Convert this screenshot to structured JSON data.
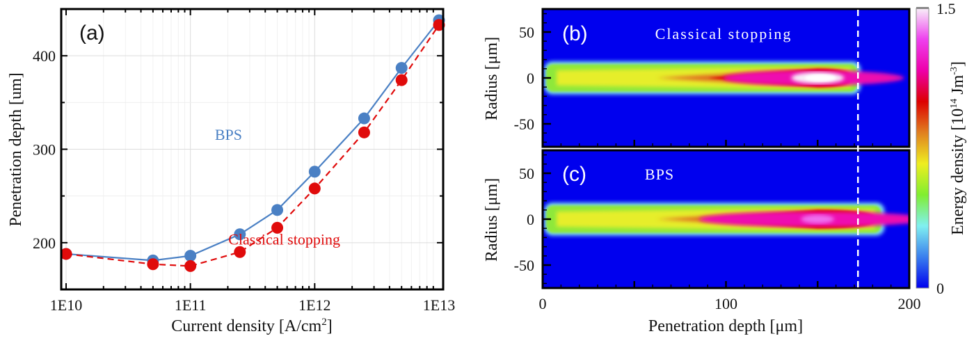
{
  "chart_data": [
    {
      "type": "line",
      "panel_label": "(a)",
      "xlabel": "Current density [A/cm",
      "xlabel_sup": "2",
      "xlabel_end": "]",
      "ylabel": "Penetration depth [um]",
      "xscale": "log",
      "xlim": [
        10000000000.0,
        10000000000000.0
      ],
      "ylim": [
        150,
        450
      ],
      "x_tick_values": [
        10000000000.0,
        100000000000.0,
        1000000000000.0,
        10000000000000.0
      ],
      "x_tick_labels": [
        "1E10",
        "1E11",
        "1E12",
        "1E13"
      ],
      "y_tick_values": [
        200,
        300,
        400
      ],
      "y_tick_labels": [
        "200",
        "300",
        "400"
      ],
      "grid": true,
      "x": [
        10000000000.0,
        50000000000.0,
        100000000000.0,
        250000000000.0,
        500000000000.0,
        1000000000000.0,
        2500000000000.0,
        5000000000000.0,
        10000000000000.0
      ],
      "series": [
        {
          "name": "BPS",
          "color": "#4a80c4",
          "line_style": "solid",
          "values": [
            188,
            181,
            186,
            209,
            235,
            276,
            333,
            387,
            438
          ]
        },
        {
          "name": "Classical stopping",
          "color": "#e00b0b",
          "line_style": "dashed",
          "values": [
            188,
            177,
            175,
            190,
            216,
            258,
            318,
            374,
            433
          ]
        }
      ],
      "annotations": [
        {
          "text": "BPS",
          "color": "#4a80c4",
          "x": 220000000000.0,
          "y": 310
        },
        {
          "text": "Classical stopping",
          "color": "#e00b0b",
          "x": 2400000000000.0,
          "y": 198
        }
      ]
    },
    {
      "type": "heatmap",
      "panel_label": "(b)",
      "title": "Classical stopping",
      "xlabel": "",
      "ylabel": "Radius [μm]",
      "xlim": [
        0,
        200
      ],
      "ylim": [
        -75,
        75
      ],
      "y_tick_labels": [
        "50",
        "0",
        "-50"
      ],
      "y_tick_values": [
        50,
        0,
        -50
      ],
      "beam_peak_depth": 150,
      "beam_peak_value": 1.5,
      "beam_end_depth": 172,
      "beam_halfwidth": 15,
      "marker_line_depth": 172
    },
    {
      "type": "heatmap",
      "panel_label": "(c)",
      "title": "BPS",
      "xlabel": "Penetration depth [μm]",
      "ylabel": "Radius [μm]",
      "xlim": [
        0,
        200
      ],
      "ylim": [
        -75,
        75
      ],
      "x_tick_labels": [
        "0",
        "100",
        "200"
      ],
      "x_tick_values": [
        0,
        100,
        200
      ],
      "y_tick_labels": [
        "50",
        "0",
        "-50"
      ],
      "y_tick_values": [
        50,
        0,
        -50
      ],
      "beam_peak_depth": 150,
      "beam_peak_value": 1.2,
      "beam_end_depth": 185,
      "beam_halfwidth": 15,
      "marker_line_depth": 172
    }
  ],
  "colorbar": {
    "label": "Energy density [10",
    "label_sup1": "14",
    "label_mid": " Jm",
    "label_sup2": "-3",
    "label_end": "]",
    "min_label": "0",
    "max_label": "1.5",
    "range": [
      0,
      1.5
    ],
    "stops": [
      "#0000ee",
      "#3a7fee",
      "#80f0f0",
      "#80ee30",
      "#eeee20",
      "#e08020",
      "#dd0000",
      "#ee00aa",
      "#ee40ee",
      "#f8f0f8"
    ]
  }
}
